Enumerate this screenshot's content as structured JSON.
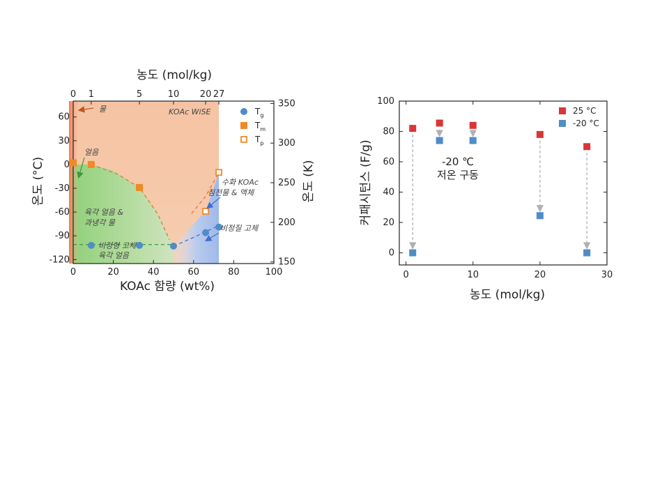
{
  "chart_data": [
    {
      "type": "scatter",
      "title": "",
      "xlabel": "KOAc 함량 (wt%)",
      "xlim": [
        0,
        100
      ],
      "xticks": [
        0,
        20,
        40,
        60,
        80,
        100
      ],
      "ylabel": "온도 (°C)",
      "ylim": [
        -125,
        80
      ],
      "yticks": [
        -120,
        -90,
        -60,
        -30,
        0,
        30,
        60
      ],
      "y2label": "온도 (K)",
      "y2lim": [
        148,
        353
      ],
      "y2ticks": [
        150,
        200,
        250,
        300,
        350
      ],
      "x2label": "농도 (mol/kg)",
      "x2ticks": [
        {
          "label": "0",
          "wt": 0
        },
        {
          "label": "1",
          "wt": 9
        },
        {
          "label": "5",
          "wt": 33
        },
        {
          "label": "10",
          "wt": 50
        },
        {
          "label": "20",
          "wt": 66
        },
        {
          "label": "27",
          "wt": 72.6
        }
      ],
      "series": [
        {
          "name": "Tg",
          "label_main": "T",
          "label_sub": "g",
          "marker": "circle",
          "color": "#4f8cc9",
          "points": [
            [
              9,
              -102
            ],
            [
              33,
              -102
            ],
            [
              50,
              -103
            ],
            [
              66,
              -86
            ],
            [
              72.6,
              -79
            ]
          ]
        },
        {
          "name": "Tm",
          "label_main": "T",
          "label_sub": "m",
          "marker": "square",
          "color": "#f08a24",
          "points": [
            [
              0,
              2
            ],
            [
              9,
              0
            ],
            [
              33,
              -29
            ]
          ]
        },
        {
          "name": "Tp",
          "label_main": "T",
          "label_sub": "p",
          "marker": "open-square",
          "color": "#f08a24",
          "points": [
            [
              66,
              -59
            ],
            [
              72.6,
              -10
            ]
          ]
        }
      ],
      "regions": {
        "top_color": "#f5c3a3",
        "left_color": "#a8d88a",
        "right_color": "#b4c8ee",
        "strip_color": "#f08a6a"
      },
      "annotations": {
        "wise": "KOAc WiSE",
        "water": "물",
        "ice": "얼음",
        "hex_ice_liquid": [
          "육각 얼음 &",
          "과냉각 물"
        ],
        "amorphous_solid_hex": [
          "비정형 고체",
          "육각 얼음"
        ],
        "hydrated_koac": [
          "수화 KOAc",
          "침전물 & 액체"
        ],
        "amorphous_solid": "비정질 고체"
      }
    },
    {
      "type": "scatter",
      "title": "",
      "xlabel": "농도 (mol/kg)",
      "xlim": [
        -1,
        30
      ],
      "xticks": [
        0,
        10,
        20,
        30
      ],
      "ylabel": "커패시턴스 (F/g)",
      "ylim": [
        -8,
        100
      ],
      "yticks": [
        0,
        20,
        40,
        60,
        80,
        100
      ],
      "series": [
        {
          "name": "25 °C",
          "color": "#d93636",
          "points": [
            [
              1,
              82
            ],
            [
              5,
              85.5
            ],
            [
              10,
              84
            ],
            [
              20,
              78
            ],
            [
              27,
              70
            ]
          ]
        },
        {
          "name": "-20 °C",
          "color": "#4f8cc9",
          "points": [
            [
              1,
              0
            ],
            [
              5,
              74
            ],
            [
              10,
              74
            ],
            [
              20,
              24.5
            ],
            [
              27,
              0
            ]
          ]
        }
      ],
      "annotation": [
        "-20 ℃",
        "저온 구동"
      ]
    }
  ]
}
